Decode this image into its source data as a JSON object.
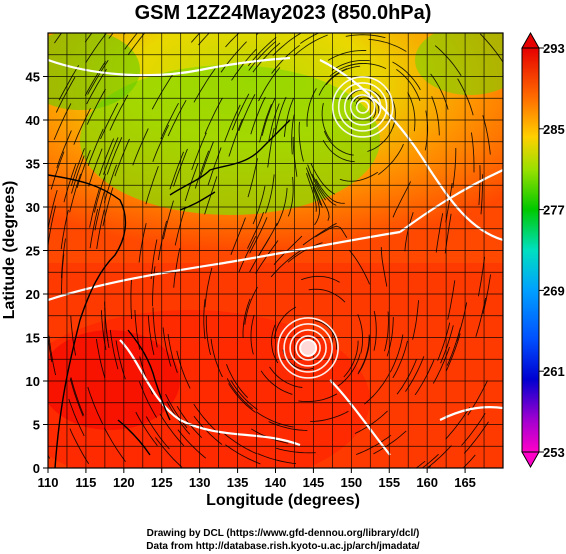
{
  "chart_data": {
    "type": "heatmap",
    "title": "GSM 12Z24May2023 (850.0hPa)",
    "xlabel": "Longitude (degrees)",
    "ylabel": "Latitude  (degrees)",
    "xlim": [
      110,
      170
    ],
    "ylim": [
      0,
      50
    ],
    "x_ticks": [
      "110",
      "115",
      "120",
      "125",
      "130",
      "135",
      "140",
      "145",
      "150",
      "155",
      "160",
      "165"
    ],
    "y_ticks": [
      "0",
      "5",
      "10",
      "15",
      "20",
      "25",
      "30",
      "35",
      "40",
      "45"
    ],
    "grid": true,
    "colorbar": {
      "ticks": [
        "293",
        "285",
        "277",
        "269",
        "261",
        "253"
      ],
      "range": [
        253,
        293
      ],
      "placement": "right"
    },
    "highlights": [
      {
        "label": "cyclone center",
        "lon": 151.5,
        "lat": 41.5
      },
      {
        "label": "typhoon center",
        "lon": 144.3,
        "lat": 13.8
      }
    ]
  },
  "footer": {
    "line1": "Drawing by DCL (https://www.gfd-dennou.org/library/dcl/)",
    "line2": "Data from http://database.rish.kyoto-u.ac.jp/arch/jmadata/"
  }
}
